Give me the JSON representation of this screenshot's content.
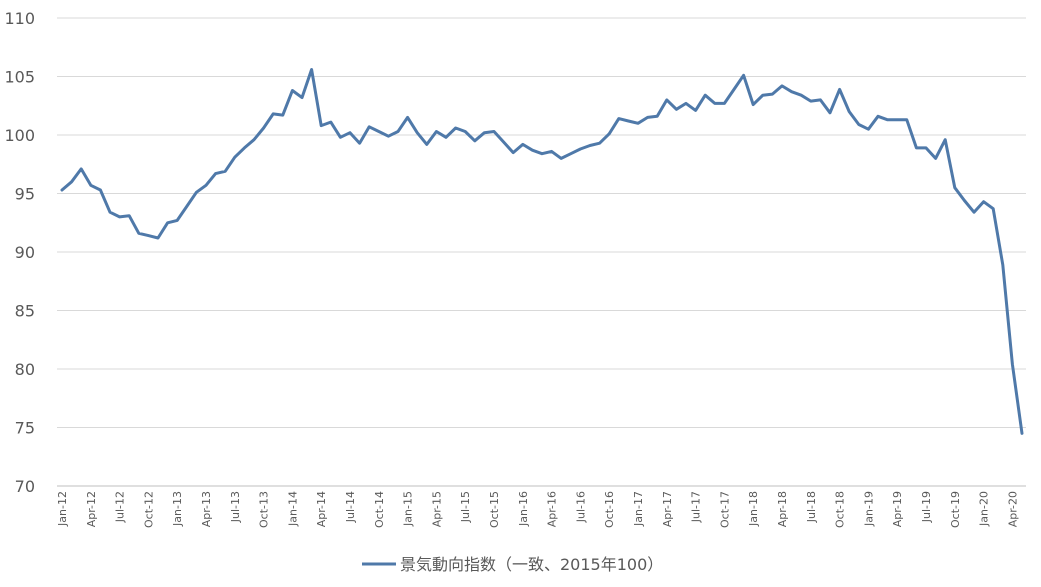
{
  "chart_data": {
    "type": "line",
    "title": "",
    "xlabel": "",
    "ylabel": "",
    "ylim": [
      70,
      110
    ],
    "yticks": [
      70,
      75,
      80,
      85,
      90,
      95,
      100,
      105,
      110
    ],
    "grid": true,
    "legend_position": "bottom",
    "x_tick_labels": [
      "Jan-12",
      "Apr-12",
      "Jul-12",
      "Oct-12",
      "Jan-13",
      "Apr-13",
      "Jul-13",
      "Oct-13",
      "Jan-14",
      "Apr-14",
      "Jul-14",
      "Oct-14",
      "Jan-15",
      "Apr-15",
      "Jul-15",
      "Oct-15",
      "Jan-16",
      "Apr-16",
      "Jul-16",
      "Oct-16",
      "Jan-17",
      "Apr-17",
      "Jul-17",
      "Oct-17",
      "Jan-18",
      "Apr-18",
      "Jul-18",
      "Oct-18",
      "Jan-19",
      "Apr-19",
      "Jul-19",
      "Oct-19",
      "Jan-20",
      "Apr-20"
    ],
    "series": [
      {
        "name": "景気動向指数（一致、2015年100）",
        "color": "#4f79a9",
        "values": [
          95.3,
          96.0,
          97.1,
          95.7,
          95.3,
          93.4,
          93.0,
          93.1,
          91.6,
          91.4,
          91.2,
          92.5,
          92.7,
          93.9,
          95.1,
          95.7,
          96.7,
          96.9,
          98.1,
          98.9,
          99.6,
          100.6,
          101.8,
          101.7,
          103.8,
          103.2,
          105.6,
          100.8,
          101.1,
          99.8,
          100.2,
          99.3,
          100.7,
          100.3,
          99.9,
          100.3,
          101.5,
          100.2,
          99.2,
          100.3,
          99.8,
          100.6,
          100.3,
          99.5,
          100.2,
          100.3,
          99.4,
          98.5,
          99.2,
          98.7,
          98.4,
          98.6,
          98.0,
          98.4,
          98.8,
          99.1,
          99.3,
          100.1,
          101.4,
          101.2,
          101.0,
          101.5,
          101.6,
          103.0,
          102.2,
          102.7,
          102.1,
          103.4,
          102.7,
          102.7,
          103.9,
          105.1,
          102.6,
          103.4,
          103.5,
          104.2,
          103.7,
          103.4,
          102.9,
          103.0,
          101.9,
          103.9,
          102.0,
          100.9,
          100.5,
          101.6,
          101.3,
          101.3,
          101.3,
          98.9,
          98.9,
          98.0,
          99.6,
          95.5,
          94.4,
          93.4,
          94.3,
          93.7,
          88.9,
          80.4,
          74.5
        ]
      }
    ]
  }
}
